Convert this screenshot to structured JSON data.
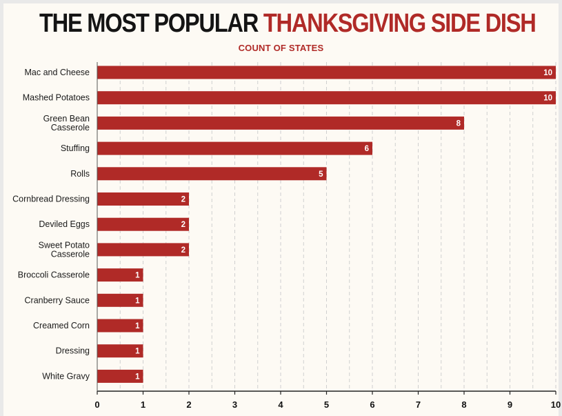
{
  "title_part1": "THE MOST POPULAR",
  "title_part2": "THANKSGIVING SIDE DISH",
  "subtitle": "COUNT OF STATES",
  "colors": {
    "bar": "#b02a27",
    "title_dark": "#141414",
    "background": "#fdfaf4",
    "grid": "#cfcfcf"
  },
  "chart_data": {
    "type": "bar",
    "orientation": "horizontal",
    "title": "THE MOST POPULAR THANKSGIVING SIDE DISH",
    "subtitle": "COUNT OF STATES",
    "categories": [
      [
        "Mac and Cheese"
      ],
      [
        "Mashed Potatoes"
      ],
      [
        "Green Bean",
        "Casserole"
      ],
      [
        "Stuffing"
      ],
      [
        "Rolls"
      ],
      [
        "Cornbread Dressing"
      ],
      [
        "Deviled Eggs"
      ],
      [
        "Sweet Potato",
        "Casserole"
      ],
      [
        "Broccoli Casserole"
      ],
      [
        "Cranberry Sauce"
      ],
      [
        "Creamed Corn"
      ],
      [
        "Dressing"
      ],
      [
        "White Gravy"
      ]
    ],
    "values": [
      10,
      10,
      8,
      6,
      5,
      2,
      2,
      2,
      1,
      1,
      1,
      1,
      1
    ],
    "xlim": [
      0,
      10
    ],
    "xticks": [
      0,
      1,
      2,
      3,
      4,
      5,
      6,
      7,
      8,
      9,
      10
    ],
    "grid": true,
    "data_labels": true
  }
}
